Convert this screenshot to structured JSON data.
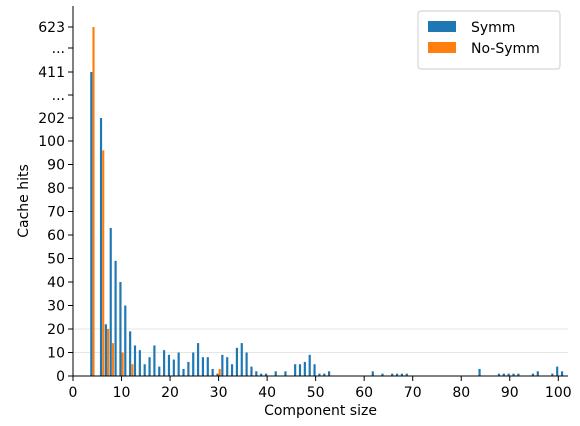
{
  "chart_data": {
    "type": "bar",
    "xlabel": "Component size",
    "ylabel": "Cache hits",
    "xlim": [
      0,
      102
    ],
    "xticks": [
      0,
      10,
      20,
      30,
      40,
      50,
      60,
      70,
      80,
      90,
      100
    ],
    "yticks_linear": [
      0,
      10,
      20,
      30,
      40,
      50,
      60,
      70,
      80,
      90,
      100
    ],
    "yticks_broken": [
      {
        "label": "202",
        "value": 202
      },
      {
        "label": "...",
        "value": null
      },
      {
        "label": "411",
        "value": 411
      },
      {
        "label": "...",
        "value": null
      },
      {
        "label": "623",
        "value": 623
      }
    ],
    "legend_position": "top-right",
    "colors": {
      "Symm": "#1f77b4",
      "No-Symm": "#ff7f0e"
    },
    "series": [
      {
        "name": "Symm",
        "x": [
          4,
          6,
          7,
          8,
          9,
          10,
          11,
          12,
          13,
          14,
          15,
          16,
          17,
          18,
          19,
          20,
          21,
          22,
          23,
          24,
          25,
          26,
          27,
          28,
          29,
          30,
          31,
          32,
          33,
          34,
          35,
          36,
          37,
          38,
          39,
          40,
          42,
          44,
          46,
          47,
          48,
          49,
          50,
          51,
          52,
          53,
          62,
          64,
          66,
          67,
          68,
          69,
          84,
          88,
          89,
          90,
          91,
          92,
          95,
          96,
          99,
          100,
          101
        ],
        "values": [
          411,
          202,
          22,
          63,
          49,
          40,
          30,
          19,
          13,
          11,
          5,
          8,
          13,
          4,
          11,
          9,
          7,
          10,
          3,
          6,
          10,
          14,
          8,
          8,
          3,
          1,
          9,
          8,
          5,
          12,
          14,
          10,
          4,
          2,
          1,
          1,
          2,
          2,
          5,
          5,
          6,
          9,
          5,
          1,
          1,
          2,
          2,
          1,
          1,
          1,
          1,
          1,
          3,
          1,
          1,
          1,
          1,
          1,
          1,
          2,
          1,
          4,
          2
        ]
      },
      {
        "name": "No-Symm",
        "x": [
          4,
          6,
          7,
          8,
          10,
          12,
          30
        ],
        "values": [
          623,
          96,
          20,
          14,
          10,
          5,
          3
        ]
      }
    ]
  }
}
